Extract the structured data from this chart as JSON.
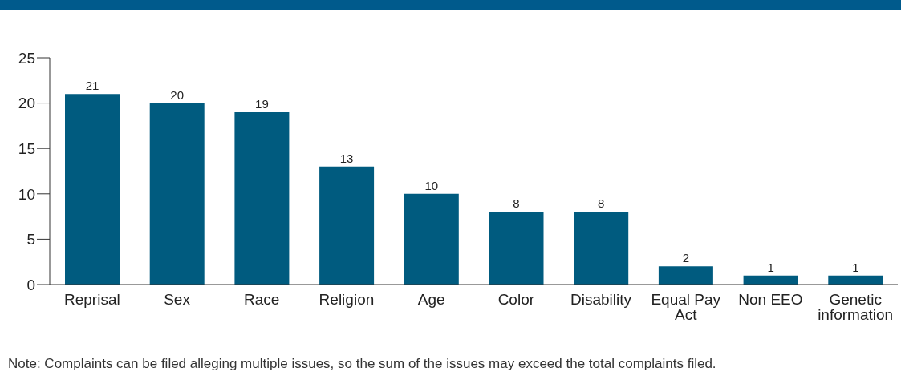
{
  "chart_data": {
    "type": "bar",
    "categories": [
      "Reprisal",
      "Sex",
      "Race",
      "Religion",
      "Age",
      "Color",
      "Disability",
      "Equal Pay Act",
      "Non EEO",
      "Genetic information"
    ],
    "values": [
      21,
      20,
      19,
      13,
      10,
      8,
      8,
      2,
      1,
      1
    ],
    "color": "#005b7f",
    "ylim": [
      0,
      25
    ],
    "yticks": [
      0,
      5,
      10,
      15,
      20,
      25
    ],
    "grid": false,
    "legend": false,
    "data_labels": true,
    "annotations": [
      "Note: Complaints can be filed alleging multiple issues, so the sum of the issues may exceed the total complaints filed."
    ]
  }
}
